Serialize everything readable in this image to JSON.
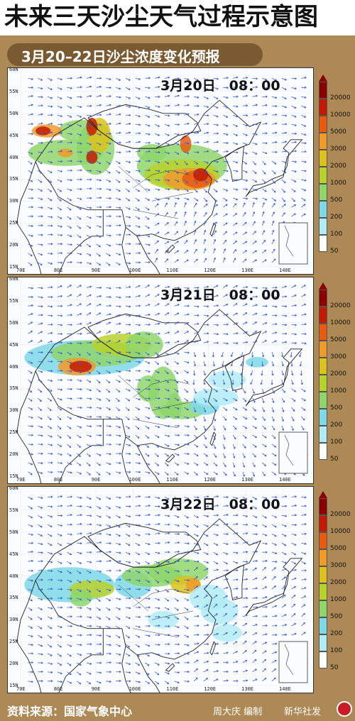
{
  "title": "未来三天沙尘天气过程示意图",
  "subtitle": "3月20–22日沙尘浓度变化预报",
  "panels": [
    {
      "date_label": "3月20日　08：00"
    },
    {
      "date_label": "3月21日　08：00"
    },
    {
      "date_label": "3月22日　08：00"
    }
  ],
  "lat_ticks": [
    "60N",
    "55N",
    "50N",
    "45N",
    "40N",
    "35N",
    "30N",
    "25N",
    "20N",
    "15N"
  ],
  "lon_ticks": [
    "70E",
    "80E",
    "90E",
    "100E",
    "110E",
    "120E",
    "130E",
    "140E"
  ],
  "legend": {
    "levels": [
      "20000",
      "10000",
      "5000",
      "3000",
      "2000",
      "1000",
      "500",
      "200",
      "100",
      "50"
    ],
    "colors": [
      "#8a0000",
      "#c21a00",
      "#e65a12",
      "#f09a2a",
      "#dcc21c",
      "#b9d22a",
      "#8ed66c",
      "#7ed8e8",
      "#b0ecf6",
      "#ffffff"
    ]
  },
  "footer": {
    "source": "资料来源：国家气象中心",
    "editor": "周大庆 编制",
    "agency": "新华社发"
  },
  "colors": {
    "background": "#ad8a55",
    "title_bg": "#ffffff",
    "subtitle_pill": "#7a5a30",
    "vector": "#3a5bd8"
  },
  "icons": [
    "xinhua-logo-icon",
    "wind-vector-icon"
  ]
}
